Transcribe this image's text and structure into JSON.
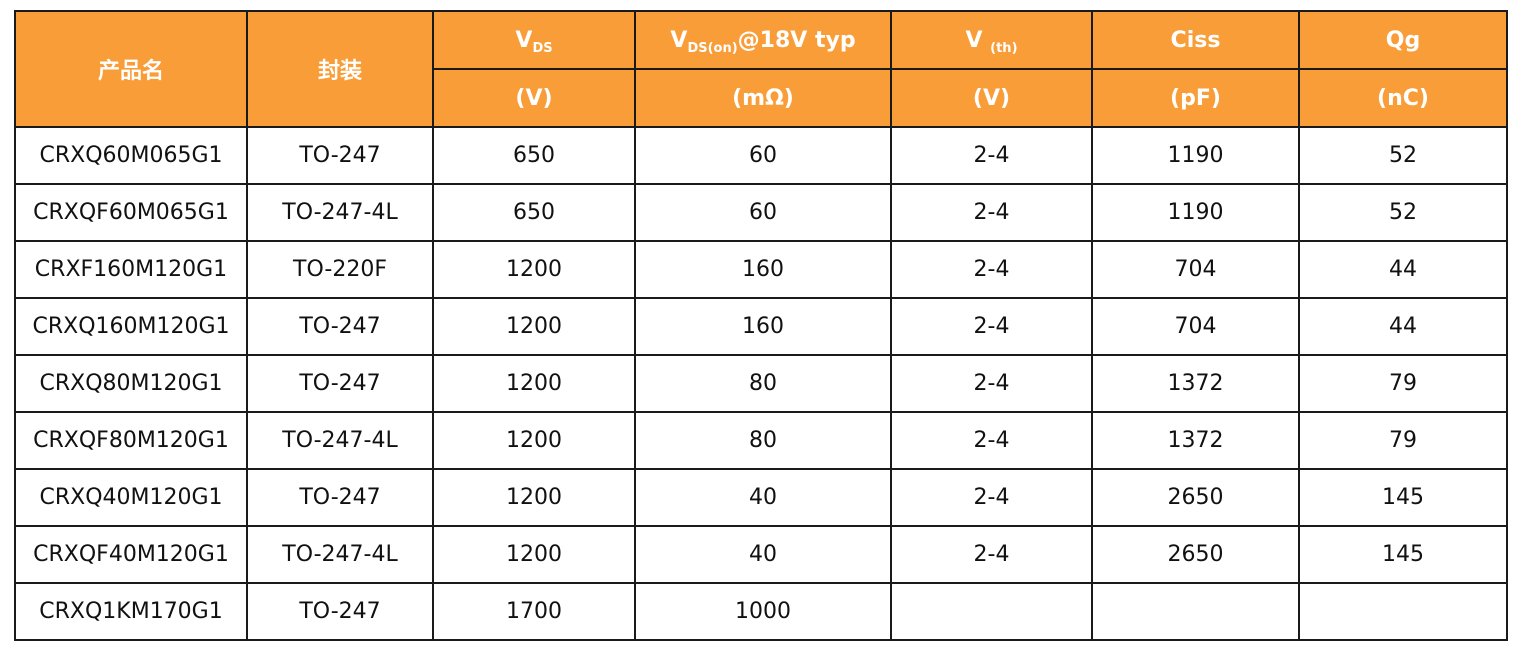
{
  "colors": {
    "header_bg": "#f99d38",
    "header_text": "#ffffff",
    "border": "#1a1a1a",
    "cell_text": "#111111"
  },
  "header": {
    "product_name": "产品名",
    "package": "封装",
    "vds": {
      "main": "V",
      "sub": "DS",
      "unit": "(V)"
    },
    "rds_on": {
      "main": "V",
      "sub": "DS(on)",
      "suffix": "@18V typ",
      "unit": "(mΩ)"
    },
    "vth": {
      "main": "V ",
      "sub": "(th)",
      "unit": "(V)"
    },
    "ciss": {
      "label": "Ciss",
      "unit": "(pF)"
    },
    "qg": {
      "label": "Qg",
      "unit": "(nC)"
    }
  },
  "rows": [
    {
      "product": "CRXQ60M065G1",
      "package": "TO-247",
      "vds": "650",
      "rds": "60",
      "vth": "2-4",
      "ciss": "1190",
      "qg": "52"
    },
    {
      "product": "CRXQF60M065G1",
      "package": "TO-247-4L",
      "vds": "650",
      "rds": "60",
      "vth": "2-4",
      "ciss": "1190",
      "qg": "52"
    },
    {
      "product": "CRXF160M120G1",
      "package": "TO-220F",
      "vds": "1200",
      "rds": "160",
      "vth": "2-4",
      "ciss": "704",
      "qg": "44"
    },
    {
      "product": "CRXQ160M120G1",
      "package": "TO-247",
      "vds": "1200",
      "rds": "160",
      "vth": "2-4",
      "ciss": "704",
      "qg": "44"
    },
    {
      "product": "CRXQ80M120G1",
      "package": "TO-247",
      "vds": "1200",
      "rds": "80",
      "vth": "2-4",
      "ciss": "1372",
      "qg": "79"
    },
    {
      "product": "CRXQF80M120G1",
      "package": "TO-247-4L",
      "vds": "1200",
      "rds": "80",
      "vth": "2-4",
      "ciss": "1372",
      "qg": "79"
    },
    {
      "product": "CRXQ40M120G1",
      "package": "TO-247",
      "vds": "1200",
      "rds": "40",
      "vth": "2-4",
      "ciss": "2650",
      "qg": "145"
    },
    {
      "product": "CRXQF40M120G1",
      "package": "TO-247-4L",
      "vds": "1200",
      "rds": "40",
      "vth": "2-4",
      "ciss": "2650",
      "qg": "145"
    },
    {
      "product": "CRXQ1KM170G1",
      "package": "TO-247",
      "vds": "1700",
      "rds": "1000",
      "vth": "",
      "ciss": "",
      "qg": ""
    }
  ]
}
